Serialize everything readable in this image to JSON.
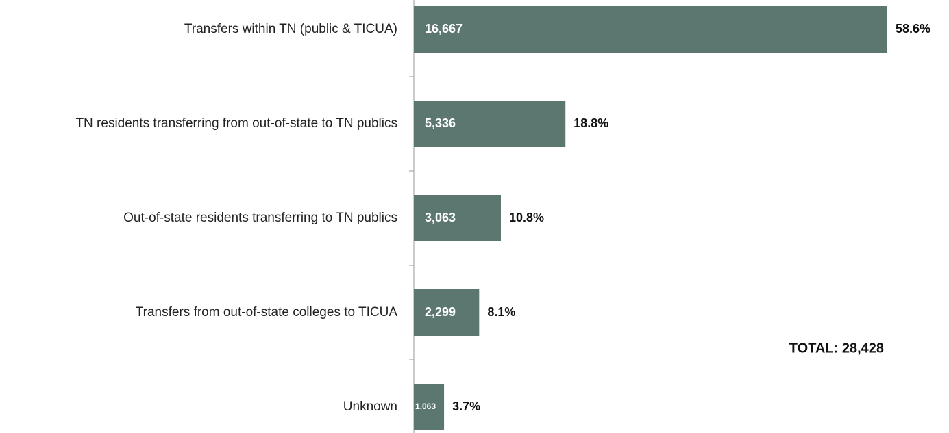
{
  "chart_data": {
    "type": "bar",
    "orientation": "horizontal",
    "categories": [
      "Transfers within TN (public & TICUA)",
      "TN residents transferring from out-of-state to TN publics",
      "Out-of-state residents transferring to TN publics",
      "Transfers from out-of-state colleges to TICUA",
      "Unknown"
    ],
    "values": [
      16667,
      5336,
      3063,
      2299,
      1063
    ],
    "value_labels": [
      "16,667",
      "5,336",
      "3,063",
      "2,299",
      "1,063"
    ],
    "share_labels": [
      "58.6%",
      "18.8%",
      "10.8%",
      "8.1%",
      "3.7%"
    ],
    "color": "#5b7770",
    "annotations": [
      "TOTAL: 28,428"
    ]
  }
}
